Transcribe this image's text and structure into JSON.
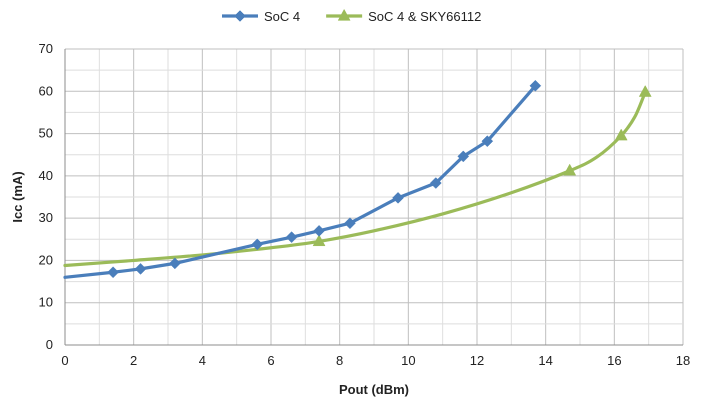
{
  "chart_data": {
    "type": "line",
    "title": "",
    "xlabel": "Pout (dBm)",
    "ylabel": "Icc (mA)",
    "xlim": [
      0,
      18
    ],
    "ylim": [
      0,
      70
    ],
    "x_ticks": [
      "0",
      "2",
      "4",
      "6",
      "8",
      "10",
      "12",
      "14",
      "16",
      "18"
    ],
    "y_ticks": [
      "0",
      "10",
      "20",
      "30",
      "40",
      "50",
      "60",
      "70"
    ],
    "grid": true,
    "legend_position": "top",
    "series": [
      {
        "name": "SoC 4",
        "color": "#4a7ebb",
        "marker": "diamond",
        "smooth": false,
        "x": [
          0,
          1.4,
          2.2,
          3.2,
          5.6,
          6.6,
          7.4,
          8.3,
          9.7,
          10.8,
          11.6,
          12.3,
          13.7
        ],
        "y": [
          16,
          17.2,
          18,
          19.3,
          23.8,
          25.5,
          27,
          28.8,
          34.8,
          38.3,
          44.6,
          48.2,
          61.3
        ],
        "marked_points": [
          1,
          2,
          3,
          4,
          5,
          6,
          7,
          8,
          9,
          10,
          11,
          12
        ]
      },
      {
        "name": "SoC 4 & SKY66112",
        "color": "#9bbb59",
        "marker": "triangle",
        "smooth": true,
        "x": [
          0,
          2,
          4,
          6,
          7.4,
          9,
          11,
          13,
          14.7,
          15.5,
          16.2,
          16.6,
          16.9
        ],
        "y": [
          18.8,
          20,
          21.3,
          23,
          24.5,
          27,
          31,
          36,
          41.2,
          44.5,
          49.5,
          54,
          59.8
        ],
        "marked_points": [
          4,
          8,
          10,
          12
        ]
      }
    ]
  }
}
